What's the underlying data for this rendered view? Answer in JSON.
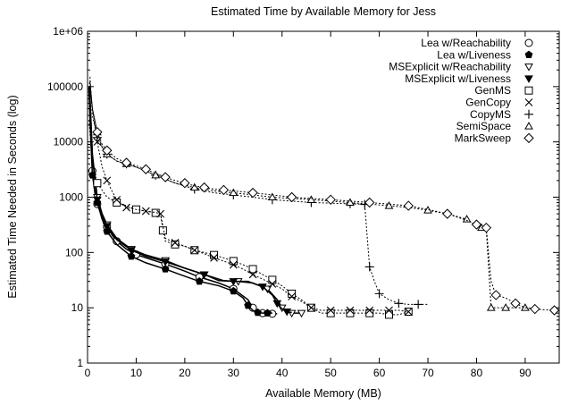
{
  "chart_data": {
    "type": "line",
    "title": "Estimated Time by Available Memory for Jess",
    "xlabel": "Available Memory (MB)",
    "ylabel": "Estimated Time Needed in Seconds (log)",
    "xlim": [
      0,
      97
    ],
    "ylim": [
      1,
      1000000
    ],
    "yscale": "log",
    "x_ticks": [
      0,
      10,
      20,
      30,
      40,
      50,
      60,
      70,
      80,
      90
    ],
    "x_tick_labels": [
      "0",
      "10",
      "20",
      "30",
      "40",
      "50",
      "60",
      "70",
      "80",
      "90"
    ],
    "y_ticks": [
      1,
      10,
      100,
      1000,
      10000,
      100000,
      1000000
    ],
    "y_tick_labels": [
      "1",
      "10",
      "100",
      "1000",
      "10000",
      "100000",
      "1e+06"
    ],
    "grid": false,
    "legend_position": "top-right",
    "series": [
      {
        "name": "Lea w/Reachability",
        "marker": "circle",
        "line": "solid",
        "x": [
          0.3,
          0.6,
          1,
          1.5,
          2,
          3,
          4,
          5,
          6,
          8,
          10,
          13,
          16,
          20,
          23,
          27,
          30,
          33,
          34,
          35,
          36,
          37,
          38,
          39
        ],
        "y": [
          100000,
          20000,
          3000,
          1200,
          750,
          450,
          290,
          210,
          160,
          115,
          92,
          75,
          62,
          46,
          36,
          28,
          22,
          14,
          10,
          9,
          8,
          7.8,
          7.8,
          7.8
        ]
      },
      {
        "name": "Lea w/Liveness",
        "marker": "filled-pentagon",
        "line": "solid",
        "x": [
          0.3,
          0.6,
          1,
          1.5,
          2,
          3,
          4,
          6,
          9,
          12,
          16,
          19,
          23,
          27,
          30,
          32,
          33,
          34,
          35,
          36,
          37,
          38
        ],
        "y": [
          90000,
          15000,
          2500,
          1300,
          800,
          400,
          240,
          140,
          85,
          65,
          50,
          40,
          30,
          25,
          20,
          15,
          11,
          9,
          8.2,
          8,
          8,
          8
        ]
      },
      {
        "name": "MSExplicit w/Reachability",
        "marker": "triangle-down",
        "line": "solid",
        "x": [
          0.4,
          1,
          2,
          3,
          4,
          6,
          9,
          12,
          16,
          20,
          24,
          28,
          31,
          34,
          37,
          39,
          40,
          41,
          42,
          43,
          44
        ],
        "y": [
          100000,
          6000,
          1000,
          500,
          320,
          180,
          115,
          90,
          72,
          52,
          40,
          31,
          30,
          28,
          22,
          14,
          10,
          8.5,
          8,
          8,
          8
        ]
      },
      {
        "name": "MSExplicit w/Liveness",
        "marker": "filled-triangle-down",
        "line": "solid",
        "x": [
          0.4,
          1,
          2,
          3,
          4,
          6,
          9,
          12,
          16,
          20,
          24,
          27,
          30,
          33,
          36,
          38,
          39,
          40,
          41,
          42
        ],
        "y": [
          100000,
          5000,
          900,
          450,
          300,
          170,
          110,
          85,
          68,
          52,
          40,
          31,
          30,
          30,
          24,
          17,
          12,
          9.5,
          8.5,
          8.2
        ]
      },
      {
        "name": "GenMS",
        "marker": "square",
        "line": "dotted",
        "x": [
          0.3,
          1,
          2,
          4,
          6,
          8,
          10,
          12,
          14,
          15,
          15.5,
          16,
          18,
          20,
          22,
          24,
          26,
          28,
          30,
          32,
          34,
          36,
          38,
          40,
          42,
          44,
          46,
          48,
          50,
          52,
          54,
          56,
          58,
          60,
          62,
          64,
          66
        ],
        "y": [
          25000,
          4000,
          1800,
          1000,
          800,
          700,
          600,
          560,
          520,
          500,
          250,
          160,
          140,
          130,
          110,
          100,
          90,
          80,
          70,
          60,
          50,
          40,
          32,
          25,
          18,
          14,
          10,
          8,
          8,
          8,
          8,
          8,
          8,
          8,
          7.5,
          7.5,
          8.5
        ]
      },
      {
        "name": "GenCopy",
        "marker": "x",
        "line": "dotted",
        "x": [
          0.4,
          1,
          2,
          3,
          4,
          5,
          6,
          7,
          8,
          10,
          12,
          14,
          15,
          16,
          18,
          20,
          22,
          24,
          26,
          28,
          30,
          32,
          34,
          36,
          38,
          40,
          42,
          44,
          46,
          48,
          50,
          52,
          54,
          56,
          58,
          60,
          62,
          64,
          66
        ],
        "y": [
          120000,
          40000,
          10000,
          3500,
          2000,
          1300,
          900,
          750,
          650,
          600,
          560,
          530,
          500,
          180,
          150,
          130,
          110,
          95,
          80,
          70,
          60,
          50,
          40,
          33,
          27,
          22,
          16,
          13,
          10,
          9,
          9,
          9,
          9,
          9,
          9,
          9,
          9,
          9,
          8.5
        ]
      },
      {
        "name": "CopyMS",
        "marker": "plus",
        "line": "dotted",
        "x": [
          0.5,
          1,
          2,
          3,
          4,
          6,
          8,
          10,
          14,
          18,
          22,
          26,
          30,
          34,
          38,
          42,
          46,
          50,
          54,
          56,
          57,
          57.5,
          58,
          59,
          60,
          62,
          64,
          66,
          68,
          70
        ],
        "y": [
          150000,
          30000,
          12000,
          8000,
          6000,
          4500,
          4000,
          3500,
          2500,
          1800,
          1400,
          1200,
          1100,
          1000,
          900,
          850,
          800,
          780,
          760,
          750,
          740,
          200,
          55,
          30,
          18,
          14,
          12,
          11.5,
          11.5,
          11.5
        ]
      },
      {
        "name": "SemiSpace",
        "marker": "triangle-up",
        "line": "dotted",
        "x": [
          0.5,
          1,
          2,
          3,
          4,
          6,
          8,
          10,
          14,
          18,
          22,
          26,
          30,
          34,
          38,
          42,
          46,
          50,
          54,
          58,
          62,
          66,
          70,
          74,
          78,
          80,
          81,
          82,
          83,
          84,
          86,
          88,
          90,
          92
        ],
        "y": [
          120000,
          40000,
          15000,
          8000,
          6000,
          4500,
          4000,
          3500,
          2500,
          1800,
          1500,
          1300,
          1200,
          1100,
          1000,
          950,
          900,
          850,
          800,
          750,
          700,
          650,
          580,
          500,
          400,
          300,
          280,
          260,
          10,
          10,
          10,
          10,
          10,
          9.5
        ]
      },
      {
        "name": "MarkSweep",
        "marker": "diamond",
        "line": "dotted",
        "x": [
          0.5,
          1,
          2,
          3,
          4,
          6,
          8,
          10,
          12,
          14,
          16,
          18,
          20,
          22,
          24,
          26,
          28,
          30,
          34,
          38,
          42,
          46,
          50,
          54,
          58,
          62,
          66,
          70,
          74,
          78,
          80,
          81,
          82,
          83,
          84,
          86,
          88,
          90,
          92,
          94,
          96
        ],
        "y": [
          130000,
          40000,
          15000,
          9000,
          7000,
          5000,
          4200,
          3700,
          3200,
          2700,
          2300,
          2000,
          1800,
          1600,
          1500,
          1400,
          1350,
          1300,
          1200,
          1100,
          1000,
          950,
          900,
          850,
          800,
          750,
          700,
          600,
          500,
          380,
          320,
          300,
          280,
          30,
          17,
          15,
          12,
          10,
          9.5,
          9.2,
          9
        ]
      }
    ]
  }
}
